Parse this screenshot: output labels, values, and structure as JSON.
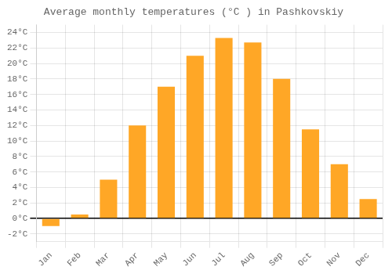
{
  "chart_data": {
    "type": "bar",
    "title": "Average monthly temperatures (°C ) in Pashkovskiy",
    "categories": [
      "Jan",
      "Feb",
      "Mar",
      "Apr",
      "May",
      "Jun",
      "Jul",
      "Aug",
      "Sep",
      "Oct",
      "Nov",
      "Dec"
    ],
    "values": [
      -1.0,
      0.5,
      5.0,
      12.0,
      17.0,
      21.0,
      23.3,
      22.7,
      18.0,
      11.5,
      7.0,
      2.5
    ],
    "color": "#FFA726",
    "ylim": [
      -3,
      25
    ],
    "yticks": [
      {
        "value": -2,
        "label": "-2°C"
      },
      {
        "value": 0,
        "label": "0°C"
      },
      {
        "value": 2,
        "label": "2°C"
      },
      {
        "value": 4,
        "label": "4°C"
      },
      {
        "value": 6,
        "label": "6°C"
      },
      {
        "value": 8,
        "label": "8°C"
      },
      {
        "value": 10,
        "label": "10°C"
      },
      {
        "value": 12,
        "label": "12°C"
      },
      {
        "value": 14,
        "label": "14°C"
      },
      {
        "value": 16,
        "label": "16°C"
      },
      {
        "value": 18,
        "label": "18°C"
      },
      {
        "value": 20,
        "label": "20°C"
      },
      {
        "value": 22,
        "label": "22°C"
      },
      {
        "value": 24,
        "label": "24°C"
      }
    ],
    "grid": true
  }
}
